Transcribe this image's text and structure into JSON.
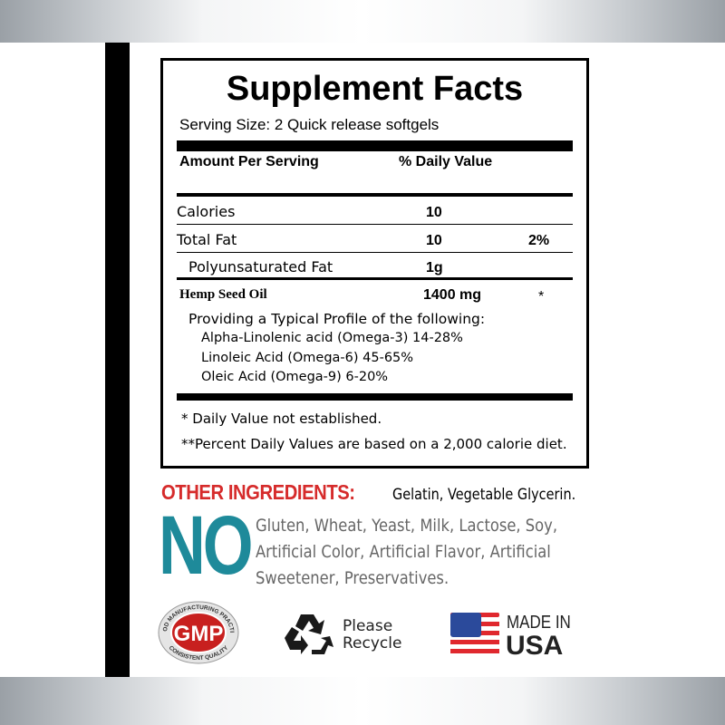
{
  "label": {
    "title": "Supplement Facts",
    "serving_size": "Serving Size: 2 Quick release softgels",
    "header": {
      "amount": "Amount Per Serving",
      "dv": "% Daily Value"
    },
    "rows": [
      {
        "name": "Calories",
        "amount": "10",
        "dv": ""
      },
      {
        "name": "Total Fat",
        "amount": "10",
        "dv": "2%"
      },
      {
        "name": "Polyunsaturated Fat",
        "amount": "1g",
        "dv": ""
      },
      {
        "name": "Hemp Seed Oil",
        "amount": "1400 mg",
        "dv": "*"
      }
    ],
    "profile_intro": "Providing a Typical Profile of the following:",
    "profile": [
      "Alpha-Linolenic acid (Omega-3) 14-28%",
      "Linoleic Acid (Omega-6) 45-65%",
      "Oleic Acid (Omega-9) 6-20%"
    ],
    "footnotes": [
      "* Daily Value not established.",
      "**Percent Daily Values are based on a 2,000 calorie diet."
    ]
  },
  "other_ingredients": {
    "label": "OTHER INGREDIENTS:",
    "value": "Gelatin, Vegetable Glycerin."
  },
  "free_from": {
    "heading": "NO",
    "lines": [
      "Gluten, Wheat, Yeast, Milk, Lactose, Soy,",
      "Artificial Color, Artificial Flavor, Artificial",
      "Sweetener, Preservatives."
    ]
  },
  "badges": {
    "gmp": {
      "text": "GMP",
      "top": "GOOD MANUFACTURING PRACTICE",
      "bottom": "CONSISTENT QUALITY"
    },
    "recycle": {
      "line1": "Please",
      "line2": "Recycle"
    },
    "usa": {
      "line1": "MADE IN",
      "line2": "USA"
    }
  },
  "colors": {
    "red": "#d62b2b",
    "teal": "#1e8a9a",
    "gmp_red": "#c8201f",
    "flag_blue": "#2b4a9b"
  }
}
